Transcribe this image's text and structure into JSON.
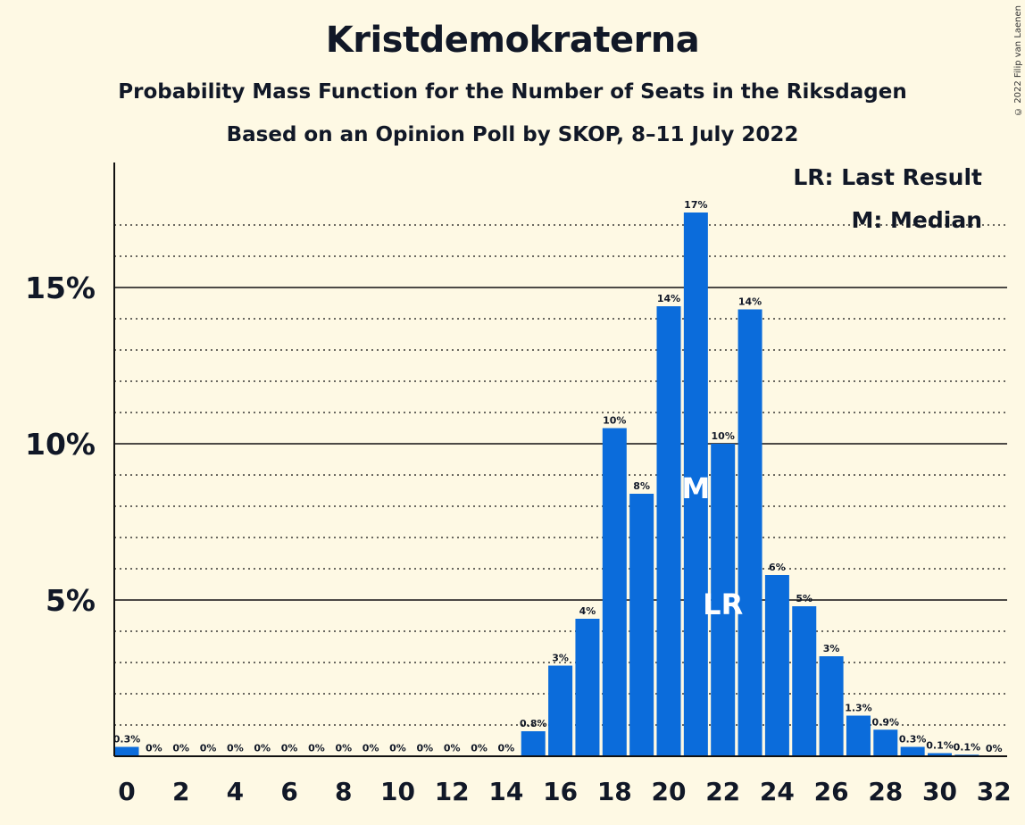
{
  "title": "Kristdemokraterna",
  "subtitle1": "Probability Mass Function for the Number of Seats in the Riksdagen",
  "subtitle2": "Based on an Opinion Poll by SKOP, 8–11 July 2022",
  "copyright": "© 2022 Filip van Laenen",
  "legend": {
    "last_result": "LR: Last Result",
    "median": "M: Median"
  },
  "colors": {
    "bar": "#0b6cdb",
    "background": "#fef9e4"
  },
  "chart_data": {
    "type": "bar",
    "x": [
      0,
      1,
      2,
      3,
      4,
      5,
      6,
      7,
      8,
      9,
      10,
      11,
      12,
      13,
      14,
      15,
      16,
      17,
      18,
      19,
      20,
      21,
      22,
      23,
      24,
      25,
      26,
      27,
      28,
      29,
      30,
      31,
      32
    ],
    "values": [
      0.3,
      0.02,
      0.02,
      0.02,
      0.02,
      0.02,
      0.02,
      0.02,
      0.02,
      0.02,
      0.02,
      0.02,
      0.02,
      0.02,
      0.02,
      0.8,
      2.9,
      4.4,
      10.5,
      8.4,
      14.4,
      17.4,
      10.0,
      14.3,
      5.8,
      4.8,
      3.2,
      1.3,
      0.85,
      0.3,
      0.1,
      0.05,
      0
    ],
    "labels": [
      "0.3%",
      "0%",
      "0%",
      "0%",
      "0%",
      "0%",
      "0%",
      "0%",
      "0%",
      "0%",
      "0%",
      "0%",
      "0%",
      "0%",
      "0%",
      "0.8%",
      "3%",
      "4%",
      "10%",
      "8%",
      "14%",
      "17%",
      "10%",
      "14%",
      "6%",
      "5%",
      "3%",
      "1.3%",
      "0.9%",
      "0.3%",
      "0.1%",
      "0.1%",
      "0%"
    ],
    "x_tick_labels": [
      "0",
      "2",
      "4",
      "6",
      "8",
      "10",
      "12",
      "14",
      "16",
      "18",
      "20",
      "22",
      "24",
      "26",
      "28",
      "30",
      "32"
    ],
    "y_tick_labels": [
      "5%",
      "10%",
      "15%"
    ],
    "y_ticks": [
      5,
      10,
      15
    ],
    "ylim": [
      0,
      19
    ],
    "xlim": [
      -0.5,
      32.5
    ],
    "grid": "dotted every 1%, solid at 5%",
    "median_seat": 21,
    "median_marker": "M",
    "last_result_seat": 22,
    "last_result_marker": "LR",
    "xlabel": "",
    "ylabel": ""
  }
}
